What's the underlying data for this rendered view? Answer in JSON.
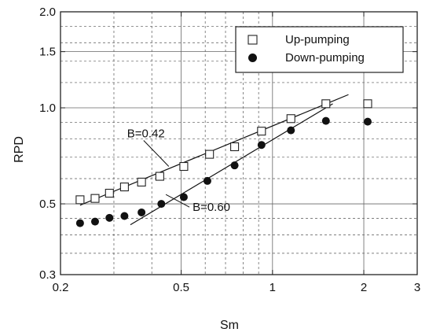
{
  "chart_data": {
    "type": "scatter",
    "xlabel": "Sm",
    "ylabel": "RPD",
    "xscale": "log",
    "yscale": "log",
    "xlim": [
      0.2,
      3
    ],
    "ylim": [
      0.3,
      2.0
    ],
    "xticks": [
      0.2,
      0.5,
      1,
      2,
      3
    ],
    "xtick_labels": [
      "0.2",
      "0.5",
      "1",
      "2",
      "3"
    ],
    "yticks": [
      0.3,
      0.5,
      1.0,
      1.5,
      2.0
    ],
    "ytick_labels": [
      "0.3",
      "0.5",
      "1.0",
      "1.5",
      "2.0"
    ],
    "grid": true,
    "legend_position": "top-right",
    "series": [
      {
        "name": "Up-pumping",
        "marker": "open-square",
        "x": [
          0.232,
          0.26,
          0.29,
          0.325,
          0.37,
          0.425,
          0.51,
          0.62,
          0.75,
          0.92,
          1.15,
          1.5,
          2.06
        ],
        "y": [
          0.515,
          0.52,
          0.54,
          0.565,
          0.585,
          0.61,
          0.655,
          0.715,
          0.755,
          0.845,
          0.925,
          1.03,
          1.03
        ]
      },
      {
        "name": "Down-pumping",
        "marker": "filled-circle",
        "x": [
          0.232,
          0.26,
          0.29,
          0.325,
          0.37,
          0.43,
          0.51,
          0.61,
          0.75,
          0.92,
          1.15,
          1.5,
          2.06
        ],
        "y": [
          0.435,
          0.44,
          0.452,
          0.458,
          0.47,
          0.5,
          0.525,
          0.59,
          0.66,
          0.765,
          0.85,
          0.91,
          0.905
        ]
      }
    ],
    "fit_lines": [
      {
        "label": "B=0.42",
        "x": [
          0.232,
          1.78
        ],
        "y": [
          0.495,
          1.1
        ]
      },
      {
        "label": "B=0.60",
        "x": [
          0.34,
          1.58
        ],
        "y": [
          0.43,
          1.03
        ]
      }
    ]
  }
}
